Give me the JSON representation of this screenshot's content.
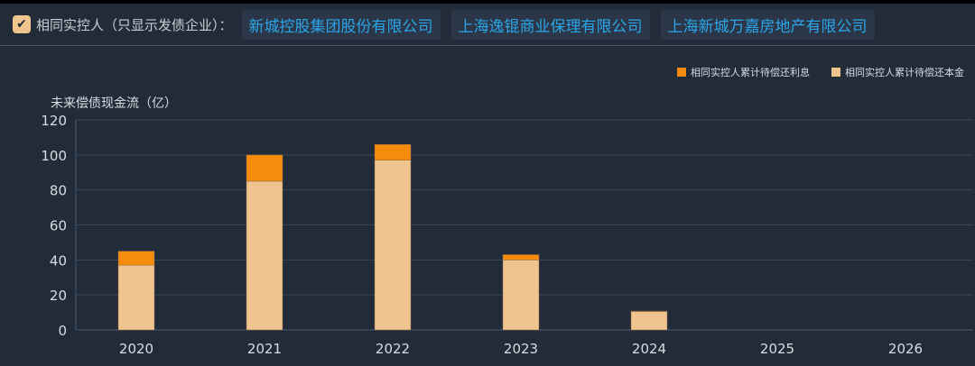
{
  "filter": {
    "checked": true,
    "label": "相同实控人（只显示发债企业）：",
    "companies": [
      "新城控股集团股份有限公司",
      "上海逸锟商业保理有限公司",
      "上海新城万嘉房地产有限公司"
    ]
  },
  "chart_data": {
    "type": "bar",
    "stacked": true,
    "ylabel": "未来偿债现金流（亿）",
    "categories": [
      "2020",
      "2021",
      "2022",
      "2023",
      "2024",
      "2025",
      "2026"
    ],
    "ylim": [
      0,
      120
    ],
    "yticks": [
      0,
      20,
      40,
      60,
      80,
      100,
      120
    ],
    "grid": true,
    "legend": "top-right",
    "series": [
      {
        "name": "相同实控人累计待偿还本金",
        "color": "#f0c48e",
        "values": [
          37,
          85,
          97,
          40,
          10.5,
          0,
          0
        ]
      },
      {
        "name": "相同实控人累计待偿还利息",
        "color": "#f68b0c",
        "values": [
          8,
          15,
          9,
          3,
          0.3,
          0,
          0
        ]
      }
    ]
  }
}
